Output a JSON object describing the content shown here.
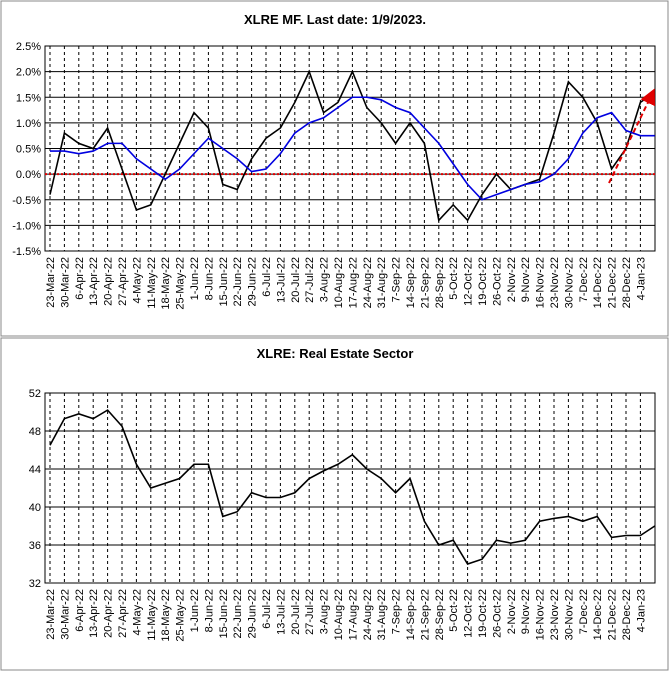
{
  "chart_data": [
    {
      "type": "line",
      "title": "XLRE MF. Last date: 1/9/2023.",
      "categories": [
        "23-Mar-22",
        "30-Mar-22",
        "6-Apr-22",
        "13-Apr-22",
        "20-Apr-22",
        "27-Apr-22",
        "4-May-22",
        "11-May-22",
        "18-May-22",
        "25-May-22",
        "1-Jun-22",
        "8-Jun-22",
        "15-Jun-22",
        "22-Jun-22",
        "29-Jun-22",
        "6-Jul-22",
        "13-Jul-22",
        "20-Jul-22",
        "27-Jul-22",
        "3-Aug-22",
        "10-Aug-22",
        "17-Aug-22",
        "24-Aug-22",
        "31-Aug-22",
        "7-Sep-22",
        "14-Sep-22",
        "21-Sep-22",
        "28-Sep-22",
        "5-Oct-22",
        "12-Oct-22",
        "19-Oct-22",
        "26-Oct-22",
        "2-Nov-22",
        "9-Nov-22",
        "16-Nov-22",
        "23-Nov-22",
        "30-Nov-22",
        "7-Dec-22",
        "14-Dec-22",
        "21-Dec-22",
        "28-Dec-22",
        "4-Jan-23",
        null
      ],
      "ylim": [
        -1.5,
        2.5
      ],
      "yticks": [
        {
          "value": -1.5,
          "label": "-1.5%"
        },
        {
          "value": -1,
          "label": "-1.0%"
        },
        {
          "value": -0.5,
          "label": "-0.5%"
        },
        {
          "value": 0,
          "label": "0.0%"
        },
        {
          "value": 0.5,
          "label": "0.5%"
        },
        {
          "value": 1,
          "label": "1.0%"
        },
        {
          "value": 1.5,
          "label": "1.5%"
        },
        {
          "value": 2,
          "label": "2.0%"
        },
        {
          "value": 2.5,
          "label": "2.5%"
        }
      ],
      "grid": true,
      "reference_line": {
        "value": 0,
        "color": "#e00000"
      },
      "series": [
        {
          "color": "#000000",
          "values": [
            -0.4,
            0.8,
            0.6,
            0.5,
            0.9,
            0.1,
            -0.7,
            -0.6,
            0.0,
            0.6,
            1.2,
            0.9,
            -0.2,
            -0.3,
            0.3,
            0.7,
            0.9,
            1.4,
            2.0,
            1.2,
            1.4,
            2.0,
            1.3,
            1.0,
            0.6,
            1.0,
            0.6,
            -0.9,
            -0.6,
            -0.9,
            -0.4,
            0.0,
            -0.3,
            -0.2,
            -0.1,
            0.8,
            1.8,
            1.5,
            1.0,
            0.1,
            0.5,
            1.4,
            1.6
          ]
        },
        {
          "color": "#0000e0",
          "values": [
            0.45,
            0.45,
            0.4,
            0.45,
            0.6,
            0.6,
            0.3,
            0.1,
            -0.1,
            0.1,
            0.4,
            0.7,
            0.5,
            0.3,
            0.05,
            0.1,
            0.4,
            0.8,
            1.0,
            1.1,
            1.3,
            1.5,
            1.5,
            1.45,
            1.3,
            1.2,
            0.9,
            0.6,
            0.2,
            -0.2,
            -0.5,
            -0.4,
            -0.3,
            -0.2,
            -0.15,
            0.0,
            0.3,
            0.8,
            1.1,
            1.2,
            0.85,
            0.75,
            0.75
          ]
        }
      ]
    },
    {
      "type": "line",
      "title": "XLRE: Real Estate Sector",
      "categories": [
        "23-Mar-22",
        "30-Mar-22",
        "6-Apr-22",
        "13-Apr-22",
        "20-Apr-22",
        "27-Apr-22",
        "4-May-22",
        "11-May-22",
        "18-May-22",
        "25-May-22",
        "1-Jun-22",
        "8-Jun-22",
        "15-Jun-22",
        "22-Jun-22",
        "29-Jun-22",
        "6-Jul-22",
        "13-Jul-22",
        "20-Jul-22",
        "27-Jul-22",
        "3-Aug-22",
        "10-Aug-22",
        "17-Aug-22",
        "24-Aug-22",
        "31-Aug-22",
        "7-Sep-22",
        "14-Sep-22",
        "21-Sep-22",
        "28-Sep-22",
        "5-Oct-22",
        "12-Oct-22",
        "19-Oct-22",
        "26-Oct-22",
        "2-Nov-22",
        "9-Nov-22",
        "16-Nov-22",
        "23-Nov-22",
        "30-Nov-22",
        "7-Dec-22",
        "14-Dec-22",
        "21-Dec-22",
        "28-Dec-22",
        "4-Jan-23",
        null
      ],
      "ylim": [
        32,
        52
      ],
      "yticks": [
        32,
        36,
        40,
        44,
        48,
        52
      ],
      "grid": true,
      "series": [
        {
          "color": "#000000",
          "values": [
            46.5,
            49.3,
            49.8,
            49.3,
            50.2,
            48.5,
            44.5,
            42.0,
            42.5,
            43.0,
            44.5,
            44.5,
            39.0,
            39.5,
            41.5,
            41.0,
            41.0,
            41.5,
            43.0,
            43.8,
            44.5,
            45.5,
            44.0,
            43.0,
            41.5,
            43.0,
            38.5,
            36.0,
            36.5,
            34.0,
            34.5,
            36.5,
            36.2,
            36.5,
            38.5,
            38.8,
            39.0,
            38.5,
            39.0,
            36.8,
            37.0,
            37.0,
            38.0
          ]
        }
      ]
    }
  ]
}
